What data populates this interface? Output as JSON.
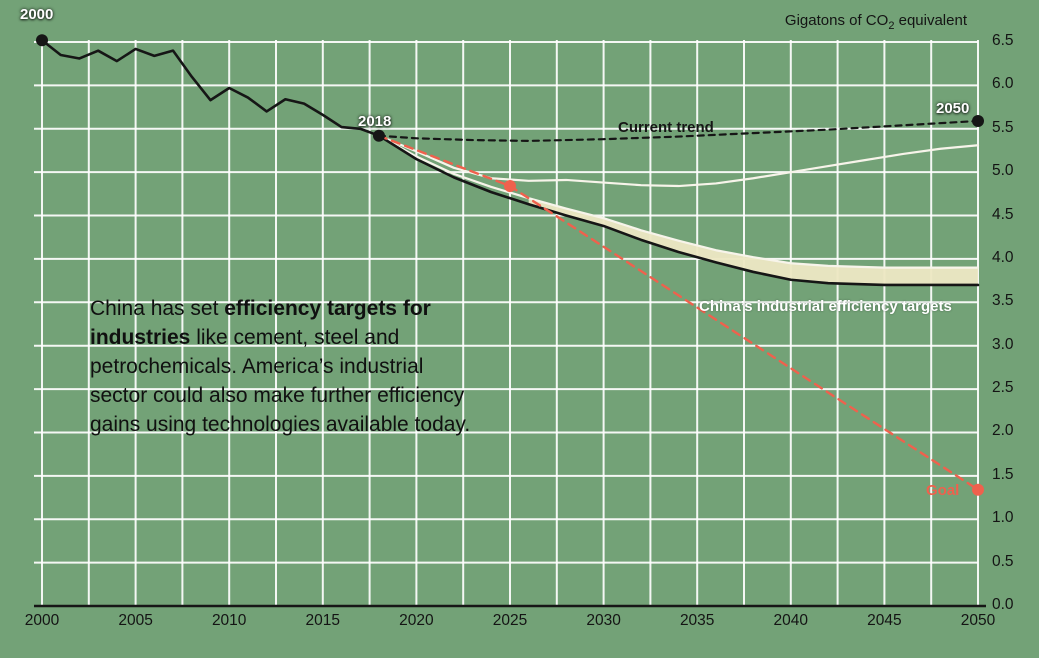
{
  "colors": {
    "background": "#73a277",
    "grid": "#ffffff",
    "axis": "#161616",
    "black_line": "#161616",
    "white_line": "#f7f4ea",
    "band_fill": "#ece7c3",
    "red": "#ef614d",
    "text": "#141414",
    "label_white": "#ffffff"
  },
  "unit_label": {
    "prefix": "Gigatons of CO",
    "sub": "2",
    "suffix": " equivalent"
  },
  "labels": {
    "year_2000": "2000",
    "year_2018": "2018",
    "year_2050": "2050",
    "current_trend": "Current trend",
    "china_targets": "China’s industrial efficiency targets",
    "goal": "Goal"
  },
  "annotation": {
    "lines": [
      {
        "segments": [
          {
            "text": "China has set ",
            "bold": false
          },
          {
            "text": "efficiency targets for",
            "bold": true
          }
        ]
      },
      {
        "segments": [
          {
            "text": "industries",
            "bold": true
          },
          {
            "text": " like cement, steel and",
            "bold": false
          }
        ]
      },
      {
        "segments": [
          {
            "text": "petrochemicals. America’s industrial",
            "bold": false
          }
        ]
      },
      {
        "segments": [
          {
            "text": "sector could also make further efficiency",
            "bold": false
          }
        ]
      },
      {
        "segments": [
          {
            "text": "gains using technologies available today.",
            "bold": false
          }
        ]
      }
    ]
  },
  "chart_data": {
    "type": "line",
    "title": "Gigatons of CO2 equivalent",
    "xlim": [
      2000,
      2050
    ],
    "ylim": [
      0,
      6.5
    ],
    "grid": {
      "x_step": 2.5,
      "y_step": 0.5,
      "on": true
    },
    "x_ticks": [
      2000,
      2005,
      2010,
      2015,
      2020,
      2025,
      2030,
      2035,
      2040,
      2045,
      2050
    ],
    "y_ticks": [
      6.5,
      6.0,
      5.5,
      5.0,
      4.5,
      4.0,
      3.5,
      3.0,
      2.5,
      2.0,
      1.5,
      1.0,
      0.5,
      0.0
    ],
    "series": [
      {
        "name": "historical-emissions",
        "color": "#161616",
        "width": 2.6,
        "dash": null,
        "x": [
          2000,
          2001,
          2002,
          2003,
          2004,
          2005,
          2006,
          2007,
          2008,
          2009,
          2010,
          2011,
          2012,
          2013,
          2014,
          2015,
          2016,
          2017,
          2018
        ],
        "y": [
          6.52,
          6.35,
          6.31,
          6.4,
          6.28,
          6.42,
          6.34,
          6.4,
          6.1,
          5.83,
          5.97,
          5.86,
          5.7,
          5.84,
          5.79,
          5.66,
          5.52,
          5.5,
          5.42
        ]
      },
      {
        "name": "current-trend",
        "color": "#161616",
        "width": 2.2,
        "dash": "6 5",
        "x": [
          2018,
          2020,
          2023,
          2026,
          2030,
          2034,
          2038,
          2042,
          2046,
          2050
        ],
        "y": [
          5.42,
          5.39,
          5.37,
          5.36,
          5.38,
          5.41,
          5.45,
          5.49,
          5.54,
          5.59
        ]
      },
      {
        "name": "frozen-efficiency-baseline",
        "color": "#f7f4ea",
        "width": 2.2,
        "dash": null,
        "x": [
          2018,
          2020,
          2022,
          2024,
          2026,
          2028,
          2030,
          2032,
          2034,
          2036,
          2038,
          2040,
          2042,
          2044,
          2046,
          2048,
          2050
        ],
        "y": [
          5.42,
          5.24,
          5.05,
          4.93,
          4.9,
          4.91,
          4.88,
          4.85,
          4.84,
          4.87,
          4.93,
          5.0,
          5.07,
          5.14,
          5.21,
          5.27,
          5.31
        ]
      },
      {
        "name": "china-targets-upper-bound",
        "color": "#f7f4ea",
        "width": 2.2,
        "dash": null,
        "x": [
          2018,
          2020,
          2022,
          2024,
          2026,
          2028,
          2030,
          2032,
          2034,
          2036,
          2038,
          2040,
          2042,
          2045,
          2050
        ],
        "y": [
          5.42,
          5.18,
          4.98,
          4.83,
          4.7,
          4.58,
          4.47,
          4.33,
          4.21,
          4.1,
          4.02,
          3.95,
          3.92,
          3.9,
          3.9
        ]
      },
      {
        "name": "china-targets-lower-bound",
        "color": "#161616",
        "width": 2.6,
        "dash": null,
        "x": [
          2018,
          2020,
          2022,
          2024,
          2026,
          2028,
          2030,
          2032,
          2034,
          2036,
          2038,
          2040,
          2042,
          2045,
          2050
        ],
        "y": [
          5.42,
          5.15,
          4.94,
          4.77,
          4.63,
          4.5,
          4.38,
          4.22,
          4.08,
          3.96,
          3.85,
          3.76,
          3.72,
          3.7,
          3.7
        ]
      },
      {
        "name": "goal-path",
        "color": "#ef614d",
        "width": 2.4,
        "dash": "8 6",
        "x": [
          2018,
          2025,
          2050
        ],
        "y": [
          5.42,
          4.84,
          1.34
        ]
      }
    ],
    "band": {
      "name": "china-efficiency-band",
      "fill": "#ece7c3",
      "x": [
        2026,
        2028,
        2030,
        2032,
        2034,
        2036,
        2038,
        2040,
        2042,
        2045,
        2050
      ],
      "top": [
        4.7,
        4.58,
        4.47,
        4.33,
        4.21,
        4.1,
        4.02,
        3.95,
        3.92,
        3.9,
        3.9
      ],
      "bottom": [
        4.63,
        4.5,
        4.38,
        4.22,
        4.08,
        3.96,
        3.85,
        3.76,
        3.72,
        3.7,
        3.7
      ]
    },
    "points": [
      {
        "name": "point-2000",
        "x": 2000,
        "y": 6.52,
        "color": "#161616"
      },
      {
        "name": "point-2018",
        "x": 2018,
        "y": 5.42,
        "color": "#161616"
      },
      {
        "name": "point-2050-trend",
        "x": 2050,
        "y": 5.59,
        "color": "#161616"
      },
      {
        "name": "point-2025-goal",
        "x": 2025,
        "y": 4.84,
        "color": "#ef614d"
      },
      {
        "name": "point-2050-goal",
        "x": 2050,
        "y": 1.34,
        "color": "#ef614d"
      }
    ]
  }
}
